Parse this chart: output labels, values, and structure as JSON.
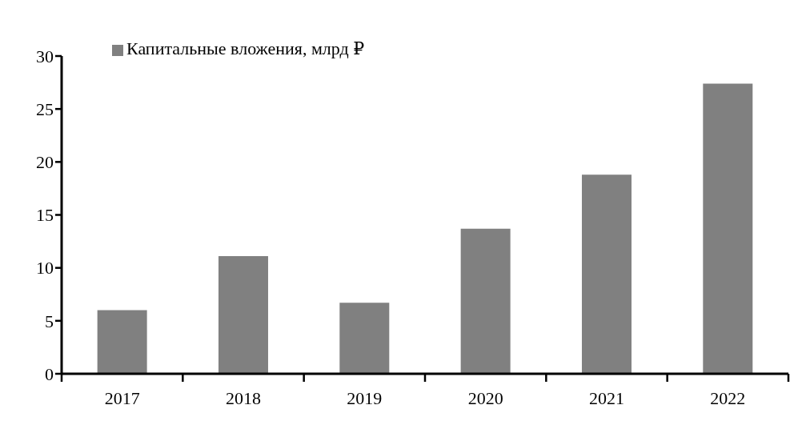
{
  "chart_data": {
    "type": "bar",
    "categories": [
      "2017",
      "2018",
      "2019",
      "2020",
      "2021",
      "2022"
    ],
    "series": [
      {
        "name": "Капитальные вложения, млрд ₽",
        "color": "#808080",
        "values": [
          6.0,
          11.1,
          6.7,
          13.7,
          18.8,
          27.4
        ]
      }
    ],
    "ylim": [
      0,
      30
    ],
    "yticks": [
      0,
      5,
      10,
      15,
      20,
      25,
      30
    ],
    "legend": "top left"
  }
}
